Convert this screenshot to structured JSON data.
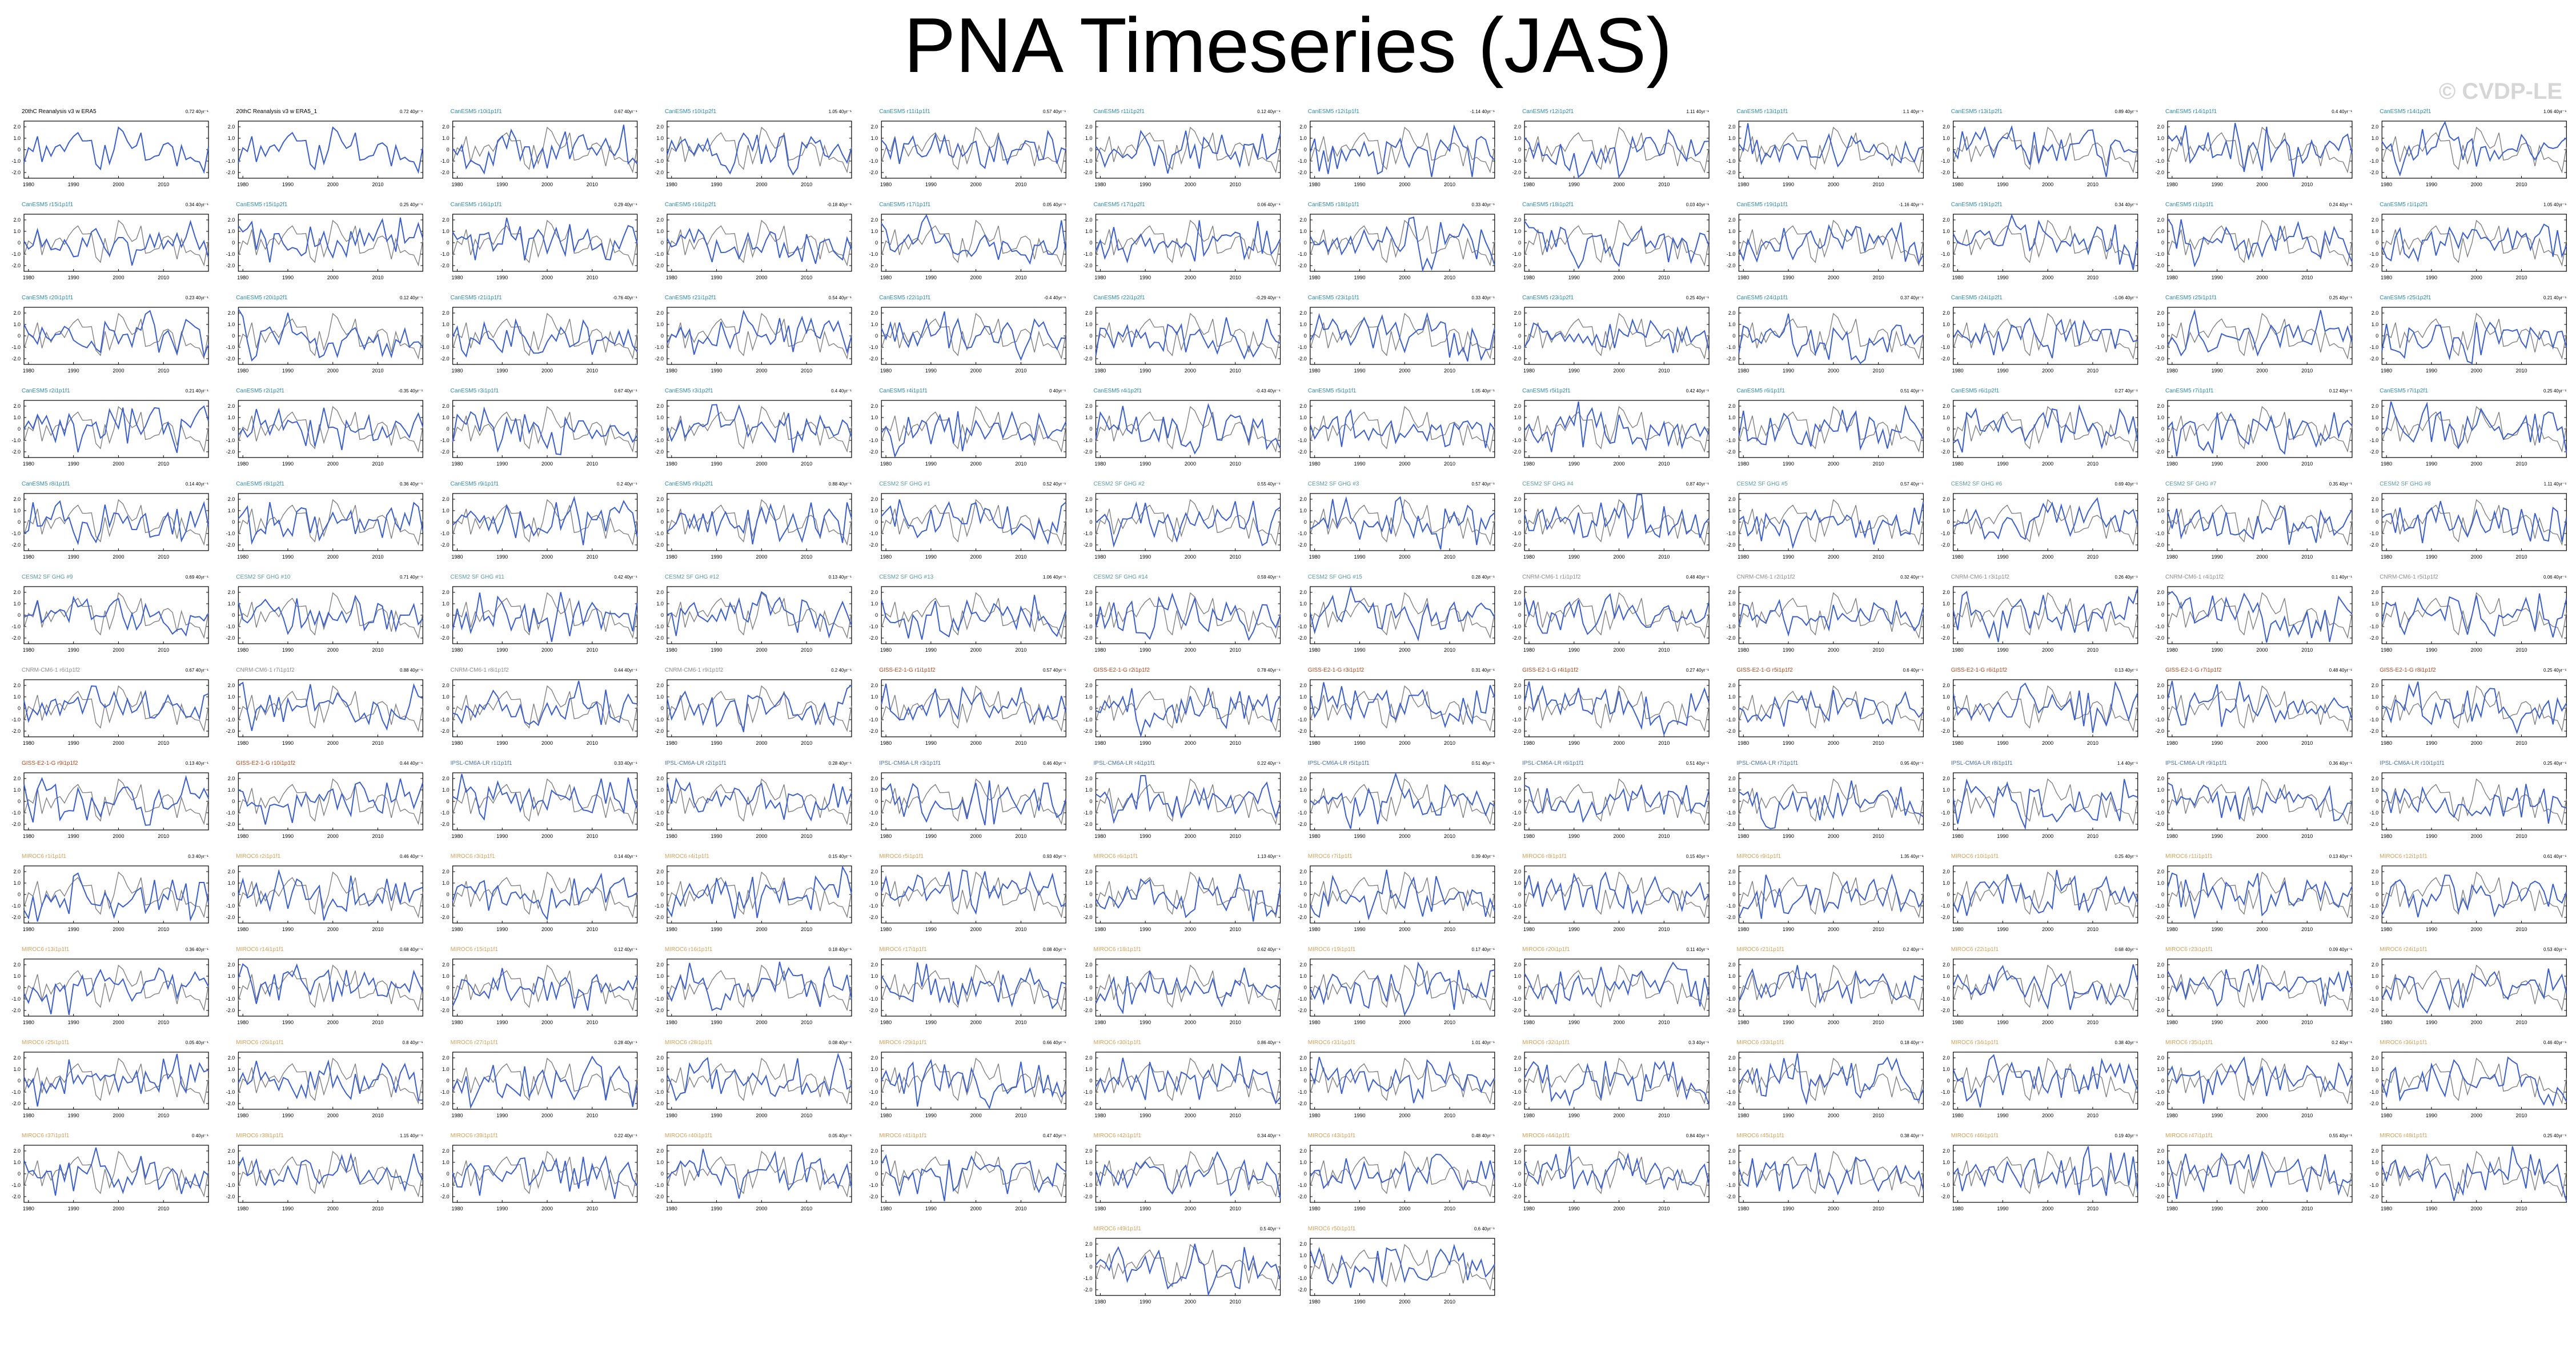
{
  "title": "PNA Timeseries (JAS)",
  "watermark": "© CVDP-LE",
  "colors": {
    "model_line": "#3a5fcd",
    "obs_line": "#808080",
    "axis": "#000000"
  },
  "chart_defaults": {
    "type": "line",
    "x_ticks": [
      "1980",
      "1990",
      "2000",
      "2010"
    ],
    "y_ticks": [
      "2.0",
      "1.0",
      "0",
      "-1.0",
      "-2.0"
    ],
    "xlim": [
      1979,
      2020
    ],
    "ylim": [
      -2.5,
      2.5
    ],
    "grid": false
  },
  "chart_data": [
    {
      "name": "20thC Reanalysis v3 w ERA5",
      "trend": "0.72 40yr⁻¹",
      "label_color": "#000000"
    },
    {
      "name": "20thC Reanalysis v3 w ERA5_1",
      "trend": "0.72 40yr⁻¹",
      "label_color": "#000000"
    },
    {
      "name": "CanESM5 r10i1p1f1",
      "trend": "0.67 40yr⁻¹",
      "label_color": "#2e8ba8"
    },
    {
      "name": "CanESM5 r10i1p2f1",
      "trend": "1.05 40yr⁻¹",
      "label_color": "#2e8ba8"
    },
    {
      "name": "CanESM5 r11i1p1f1",
      "trend": "0.57 40yr⁻¹",
      "label_color": "#2e8ba8"
    },
    {
      "name": "CanESM5 r11i1p2f1",
      "trend": "0.12 40yr⁻¹",
      "label_color": "#2e8ba8"
    },
    {
      "name": "CanESM5 r12i1p1f1",
      "trend": "-1.14 40yr⁻¹",
      "label_color": "#2e8ba8"
    },
    {
      "name": "CanESM5 r12i1p2f1",
      "trend": "1.11 40yr⁻¹",
      "label_color": "#2e8ba8"
    },
    {
      "name": "CanESM5 r13i1p1f1",
      "trend": "1.1 40yr⁻¹",
      "label_color": "#2e8ba8"
    },
    {
      "name": "CanESM5 r13i1p2f1",
      "trend": "0.89 40yr⁻¹",
      "label_color": "#2e8ba8"
    },
    {
      "name": "CanESM5 r14i1p1f1",
      "trend": "0.4 40yr⁻¹",
      "label_color": "#2e8ba8"
    },
    {
      "name": "CanESM5 r14i1p2f1",
      "trend": "1.06 40yr⁻¹",
      "label_color": "#2e8ba8"
    },
    {
      "name": "CanESM5 r15i1p1f1",
      "trend": "0.34 40yr⁻¹",
      "label_color": "#2e8ba8"
    },
    {
      "name": "CanESM5 r15i1p2f1",
      "trend": "0.25 40yr⁻¹",
      "label_color": "#2e8ba8"
    },
    {
      "name": "CanESM5 r16i1p1f1",
      "trend": "0.29 40yr⁻¹",
      "label_color": "#2e8ba8"
    },
    {
      "name": "CanESM5 r16i1p2f1",
      "trend": "-0.18 40yr⁻¹",
      "label_color": "#2e8ba8"
    },
    {
      "name": "CanESM5 r17i1p1f1",
      "trend": "0.05 40yr⁻¹",
      "label_color": "#2e8ba8"
    },
    {
      "name": "CanESM5 r17i1p2f1",
      "trend": "0.06 40yr⁻¹",
      "label_color": "#2e8ba8"
    },
    {
      "name": "CanESM5 r18i1p1f1",
      "trend": "0.33 40yr⁻¹",
      "label_color": "#2e8ba8"
    },
    {
      "name": "CanESM5 r18i1p2f1",
      "trend": "0.03 40yr⁻¹",
      "label_color": "#2e8ba8"
    },
    {
      "name": "CanESM5 r19i1p1f1",
      "trend": "-1.16 40yr⁻¹",
      "label_color": "#2e8ba8"
    },
    {
      "name": "CanESM5 r19i1p2f1",
      "trend": "0.34 40yr⁻¹",
      "label_color": "#2e8ba8"
    },
    {
      "name": "CanESM5 r1i1p1f1",
      "trend": "0.24 40yr⁻¹",
      "label_color": "#2e8ba8"
    },
    {
      "name": "CanESM5 r1i1p2f1",
      "trend": "1.05 40yr⁻¹",
      "label_color": "#2e8ba8"
    },
    {
      "name": "CanESM5 r20i1p1f1",
      "trend": "0.23 40yr⁻¹",
      "label_color": "#2e8ba8"
    },
    {
      "name": "CanESM5 r20i1p2f1",
      "trend": "0.12 40yr⁻¹",
      "label_color": "#2e8ba8"
    },
    {
      "name": "CanESM5 r21i1p1f1",
      "trend": "-0.76 40yr⁻¹",
      "label_color": "#2e8ba8"
    },
    {
      "name": "CanESM5 r21i1p2f1",
      "trend": "0.54 40yr⁻¹",
      "label_color": "#2e8ba8"
    },
    {
      "name": "CanESM5 r22i1p1f1",
      "trend": "-0.4 40yr⁻¹",
      "label_color": "#2e8ba8"
    },
    {
      "name": "CanESM5 r22i1p2f1",
      "trend": "-0.29 40yr⁻¹",
      "label_color": "#2e8ba8"
    },
    {
      "name": "CanESM5 r23i1p1f1",
      "trend": "0.33 40yr⁻¹",
      "label_color": "#2e8ba8"
    },
    {
      "name": "CanESM5 r23i1p2f1",
      "trend": "0.25 40yr⁻¹",
      "label_color": "#2e8ba8"
    },
    {
      "name": "CanESM5 r24i1p1f1",
      "trend": "0.37 40yr⁻¹",
      "label_color": "#2e8ba8"
    },
    {
      "name": "CanESM5 r24i1p2f1",
      "trend": "-1.06 40yr⁻¹",
      "label_color": "#2e8ba8"
    },
    {
      "name": "CanESM5 r25i1p1f1",
      "trend": "0.25 40yr⁻¹",
      "label_color": "#2e8ba8"
    },
    {
      "name": "CanESM5 r25i1p2f1",
      "trend": "0.21 40yr⁻¹",
      "label_color": "#2e8ba8"
    },
    {
      "name": "CanESM5 r2i1p1f1",
      "trend": "0.21 40yr⁻¹",
      "label_color": "#2e8ba8"
    },
    {
      "name": "CanESM5 r2i1p2f1",
      "trend": "-0.35 40yr⁻¹",
      "label_color": "#2e8ba8"
    },
    {
      "name": "CanESM5 r3i1p1f1",
      "trend": "0.67 40yr⁻¹",
      "label_color": "#2e8ba8"
    },
    {
      "name": "CanESM5 r3i1p2f1",
      "trend": "0.4 40yr⁻¹",
      "label_color": "#2e8ba8"
    },
    {
      "name": "CanESM5 r4i1p1f1",
      "trend": "0 40yr⁻¹",
      "label_color": "#2e8ba8"
    },
    {
      "name": "CanESM5 r4i1p2f1",
      "trend": "-0.43 40yr⁻¹",
      "label_color": "#2e8ba8"
    },
    {
      "name": "CanESM5 r5i1p1f1",
      "trend": "1.05 40yr⁻¹",
      "label_color": "#2e8ba8"
    },
    {
      "name": "CanESM5 r5i1p2f1",
      "trend": "0.42 40yr⁻¹",
      "label_color": "#2e8ba8"
    },
    {
      "name": "CanESM5 r6i1p1f1",
      "trend": "0.51 40yr⁻¹",
      "label_color": "#2e8ba8"
    },
    {
      "name": "CanESM5 r6i1p2f1",
      "trend": "0.27 40yr⁻¹",
      "label_color": "#2e8ba8"
    },
    {
      "name": "CanESM5 r7i1p1f1",
      "trend": "0.12 40yr⁻¹",
      "label_color": "#2e8ba8"
    },
    {
      "name": "CanESM5 r7i1p2f1",
      "trend": "0.25 40yr⁻¹",
      "label_color": "#2e8ba8"
    },
    {
      "name": "CanESM5 r8i1p1f1",
      "trend": "0.14 40yr⁻¹",
      "label_color": "#2e8ba8"
    },
    {
      "name": "CanESM5 r8i1p2f1",
      "trend": "0.36 40yr⁻¹",
      "label_color": "#2e8ba8"
    },
    {
      "name": "CanESM5 r9i1p1f1",
      "trend": "0.2 40yr⁻¹",
      "label_color": "#2e8ba8"
    },
    {
      "name": "CanESM5 r9i1p2f1",
      "trend": "0.88 40yr⁻¹",
      "label_color": "#2e8ba8"
    },
    {
      "name": "CESM2 SF GHG #1",
      "trend": "0.52 40yr⁻¹",
      "label_color": "#5a9aa0"
    },
    {
      "name": "CESM2 SF GHG #2",
      "trend": "0.55 40yr⁻¹",
      "label_color": "#5a9aa0"
    },
    {
      "name": "CESM2 SF GHG #3",
      "trend": "0.57 40yr⁻¹",
      "label_color": "#5a9aa0"
    },
    {
      "name": "CESM2 SF GHG #4",
      "trend": "0.87 40yr⁻¹",
      "label_color": "#5a9aa0"
    },
    {
      "name": "CESM2 SF GHG #5",
      "trend": "0.57 40yr⁻¹",
      "label_color": "#5a9aa0"
    },
    {
      "name": "CESM2 SF GHG #6",
      "trend": "0.69 40yr⁻¹",
      "label_color": "#5a9aa0"
    },
    {
      "name": "CESM2 SF GHG #7",
      "trend": "0.35 40yr⁻¹",
      "label_color": "#5a9aa0"
    },
    {
      "name": "CESM2 SF GHG #8",
      "trend": "1.11 40yr⁻¹",
      "label_color": "#5a9aa0"
    },
    {
      "name": "CESM2 SF GHG #9",
      "trend": "0.69 40yr⁻¹",
      "label_color": "#5a9aa0"
    },
    {
      "name": "CESM2 SF GHG #10",
      "trend": "0.71 40yr⁻¹",
      "label_color": "#5a9aa0"
    },
    {
      "name": "CESM2 SF GHG #11",
      "trend": "0.42 40yr⁻¹",
      "label_color": "#5a9aa0"
    },
    {
      "name": "CESM2 SF GHG #12",
      "trend": "0.13 40yr⁻¹",
      "label_color": "#5a9aa0"
    },
    {
      "name": "CESM2 SF GHG #13",
      "trend": "1.06 40yr⁻¹",
      "label_color": "#5a9aa0"
    },
    {
      "name": "CESM2 SF GHG #14",
      "trend": "0.59 40yr⁻¹",
      "label_color": "#5a9aa0"
    },
    {
      "name": "CESM2 SF GHG #15",
      "trend": "0.28 40yr⁻¹",
      "label_color": "#5a9aa0"
    },
    {
      "name": "CNRM-CM6-1 r1i1p1f2",
      "trend": "0.48 40yr⁻¹",
      "label_color": "#8c8c8c"
    },
    {
      "name": "CNRM-CM6-1 r2i1p1f2",
      "trend": "0.32 40yr⁻¹",
      "label_color": "#8c8c8c"
    },
    {
      "name": "CNRM-CM6-1 r3i1p1f2",
      "trend": "0.26 40yr⁻¹",
      "label_color": "#8c8c8c"
    },
    {
      "name": "CNRM-CM6-1 r4i1p1f2",
      "trend": "0.1 40yr⁻¹",
      "label_color": "#8c8c8c"
    },
    {
      "name": "CNRM-CM6-1 r5i1p1f2",
      "trend": "0.06 40yr⁻¹",
      "label_color": "#8c8c8c"
    },
    {
      "name": "CNRM-CM6-1 r6i1p1f2",
      "trend": "0.67 40yr⁻¹",
      "label_color": "#8c8c8c"
    },
    {
      "name": "CNRM-CM6-1 r7i1p1f2",
      "trend": "0.88 40yr⁻¹",
      "label_color": "#8c8c8c"
    },
    {
      "name": "CNRM-CM6-1 r8i1p1f2",
      "trend": "0.44 40yr⁻¹",
      "label_color": "#8c8c8c"
    },
    {
      "name": "CNRM-CM6-1 r9i1p1f2",
      "trend": "0.2 40yr⁻¹",
      "label_color": "#8c8c8c"
    },
    {
      "name": "GISS-E2-1-G r1i1p1f2",
      "trend": "0.57 40yr⁻¹",
      "label_color": "#b5451b"
    },
    {
      "name": "GISS-E2-1-G r2i1p1f2",
      "trend": "0.78 40yr⁻¹",
      "label_color": "#b5451b"
    },
    {
      "name": "GISS-E2-1-G r3i1p1f2",
      "trend": "0.31 40yr⁻¹",
      "label_color": "#b5451b"
    },
    {
      "name": "GISS-E2-1-G r4i1p1f2",
      "trend": "0.27 40yr⁻¹",
      "label_color": "#b5451b"
    },
    {
      "name": "GISS-E2-1-G r5i1p1f2",
      "trend": "0.6 40yr⁻¹",
      "label_color": "#b5451b"
    },
    {
      "name": "GISS-E2-1-G r6i1p1f2",
      "trend": "0.13 40yr⁻¹",
      "label_color": "#b5451b"
    },
    {
      "name": "GISS-E2-1-G r7i1p1f2",
      "trend": "0.48 40yr⁻¹",
      "label_color": "#b5451b"
    },
    {
      "name": "GISS-E2-1-G r8i1p1f2",
      "trend": "0.25 40yr⁻¹",
      "label_color": "#b5451b"
    },
    {
      "name": "GISS-E2-1-G r9i1p1f2",
      "trend": "0.13 40yr⁻¹",
      "label_color": "#b5451b"
    },
    {
      "name": "GISS-E2-1-G r10i1p1f2",
      "trend": "0.44 40yr⁻¹",
      "label_color": "#b5451b"
    },
    {
      "name": "IPSL-CM6A-LR r1i1p1f1",
      "trend": "0.33 40yr⁻¹",
      "label_color": "#4a6fa5"
    },
    {
      "name": "IPSL-CM6A-LR r2i1p1f1",
      "trend": "0.28 40yr⁻¹",
      "label_color": "#4a6fa5"
    },
    {
      "name": "IPSL-CM6A-LR r3i1p1f1",
      "trend": "0.46 40yr⁻¹",
      "label_color": "#4a6fa5"
    },
    {
      "name": "IPSL-CM6A-LR r4i1p1f1",
      "trend": "0.22 40yr⁻¹",
      "label_color": "#4a6fa5"
    },
    {
      "name": "IPSL-CM6A-LR r5i1p1f1",
      "trend": "0.51 40yr⁻¹",
      "label_color": "#4a6fa5"
    },
    {
      "name": "IPSL-CM6A-LR r6i1p1f1",
      "trend": "0.51 40yr⁻¹",
      "label_color": "#4a6fa5"
    },
    {
      "name": "IPSL-CM6A-LR r7i1p1f1",
      "trend": "0.95 40yr⁻¹",
      "label_color": "#4a6fa5"
    },
    {
      "name": "IPSL-CM6A-LR r8i1p1f1",
      "trend": "1.4 40yr⁻¹",
      "label_color": "#4a6fa5"
    },
    {
      "name": "IPSL-CM6A-LR r9i1p1f1",
      "trend": "0.36 40yr⁻¹",
      "label_color": "#4a6fa5"
    },
    {
      "name": "IPSL-CM6A-LR r10i1p1f1",
      "trend": "0.25 40yr⁻¹",
      "label_color": "#4a6fa5"
    },
    {
      "name": "MIROC6 r1i1p1f1",
      "trend": "0.3 40yr⁻¹",
      "label_color": "#d2a15a"
    },
    {
      "name": "MIROC6 r2i1p1f1",
      "trend": "0.46 40yr⁻¹",
      "label_color": "#d2a15a"
    },
    {
      "name": "MIROC6 r3i1p1f1",
      "trend": "0.14 40yr⁻¹",
      "label_color": "#d2a15a"
    },
    {
      "name": "MIROC6 r4i1p1f1",
      "trend": "0.15 40yr⁻¹",
      "label_color": "#d2a15a"
    },
    {
      "name": "MIROC6 r5i1p1f1",
      "trend": "0.93 40yr⁻¹",
      "label_color": "#d2a15a"
    },
    {
      "name": "MIROC6 r6i1p1f1",
      "trend": "1.13 40yr⁻¹",
      "label_color": "#d2a15a"
    },
    {
      "name": "MIROC6 r7i1p1f1",
      "trend": "0.39 40yr⁻¹",
      "label_color": "#d2a15a"
    },
    {
      "name": "MIROC6 r8i1p1f1",
      "trend": "0.15 40yr⁻¹",
      "label_color": "#d2a15a"
    },
    {
      "name": "MIROC6 r9i1p1f1",
      "trend": "1.35 40yr⁻¹",
      "label_color": "#d2a15a"
    },
    {
      "name": "MIROC6 r10i1p1f1",
      "trend": "0.25 40yr⁻¹",
      "label_color": "#d2a15a"
    },
    {
      "name": "MIROC6 r11i1p1f1",
      "trend": "0.13 40yr⁻¹",
      "label_color": "#d2a15a"
    },
    {
      "name": "MIROC6 r12i1p1f1",
      "trend": "0.61 40yr⁻¹",
      "label_color": "#d2a15a"
    },
    {
      "name": "MIROC6 r13i1p1f1",
      "trend": "0.36 40yr⁻¹",
      "label_color": "#d2a15a"
    },
    {
      "name": "MIROC6 r14i1p1f1",
      "trend": "0.68 40yr⁻¹",
      "label_color": "#d2a15a"
    },
    {
      "name": "MIROC6 r15i1p1f1",
      "trend": "0.12 40yr⁻¹",
      "label_color": "#d2a15a"
    },
    {
      "name": "MIROC6 r16i1p1f1",
      "trend": "0.18 40yr⁻¹",
      "label_color": "#d2a15a"
    },
    {
      "name": "MIROC6 r17i1p1f1",
      "trend": "0.08 40yr⁻¹",
      "label_color": "#d2a15a"
    },
    {
      "name": "MIROC6 r18i1p1f1",
      "trend": "0.62 40yr⁻¹",
      "label_color": "#d2a15a"
    },
    {
      "name": "MIROC6 r19i1p1f1",
      "trend": "0.17 40yr⁻¹",
      "label_color": "#d2a15a"
    },
    {
      "name": "MIROC6 r20i1p1f1",
      "trend": "0.11 40yr⁻¹",
      "label_color": "#d2a15a"
    },
    {
      "name": "MIROC6 r21i1p1f1",
      "trend": "0.2 40yr⁻¹",
      "label_color": "#d2a15a"
    },
    {
      "name": "MIROC6 r22i1p1f1",
      "trend": "0.68 40yr⁻¹",
      "label_color": "#d2a15a"
    },
    {
      "name": "MIROC6 r23i1p1f1",
      "trend": "0.09 40yr⁻¹",
      "label_color": "#d2a15a"
    },
    {
      "name": "MIROC6 r24i1p1f1",
      "trend": "0.53 40yr⁻¹",
      "label_color": "#d2a15a"
    },
    {
      "name": "MIROC6 r25i1p1f1",
      "trend": "0.05 40yr⁻¹",
      "label_color": "#d2a15a"
    },
    {
      "name": "MIROC6 r26i1p1f1",
      "trend": "0.8 40yr⁻¹",
      "label_color": "#d2a15a"
    },
    {
      "name": "MIROC6 r27i1p1f1",
      "trend": "0.28 40yr⁻¹",
      "label_color": "#d2a15a"
    },
    {
      "name": "MIROC6 r28i1p1f1",
      "trend": "0.08 40yr⁻¹",
      "label_color": "#d2a15a"
    },
    {
      "name": "MIROC6 r29i1p1f1",
      "trend": "0.66 40yr⁻¹",
      "label_color": "#d2a15a"
    },
    {
      "name": "MIROC6 r30i1p1f1",
      "trend": "0.86 40yr⁻¹",
      "label_color": "#d2a15a"
    },
    {
      "name": "MIROC6 r31i1p1f1",
      "trend": "1.01 40yr⁻¹",
      "label_color": "#d2a15a"
    },
    {
      "name": "MIROC6 r32i1p1f1",
      "trend": "0.3 40yr⁻¹",
      "label_color": "#d2a15a"
    },
    {
      "name": "MIROC6 r33i1p1f1",
      "trend": "0.18 40yr⁻¹",
      "label_color": "#d2a15a"
    },
    {
      "name": "MIROC6 r34i1p1f1",
      "trend": "0.38 40yr⁻¹",
      "label_color": "#d2a15a"
    },
    {
      "name": "MIROC6 r35i1p1f1",
      "trend": "0.2 40yr⁻¹",
      "label_color": "#d2a15a"
    },
    {
      "name": "MIROC6 r36i1p1f1",
      "trend": "0.46 40yr⁻¹",
      "label_color": "#d2a15a"
    },
    {
      "name": "MIROC6 r37i1p1f1",
      "trend": "0 40yr⁻¹",
      "label_color": "#d2a15a"
    },
    {
      "name": "MIROC6 r38i1p1f1",
      "trend": "1.15 40yr⁻¹",
      "label_color": "#d2a15a"
    },
    {
      "name": "MIROC6 r39i1p1f1",
      "trend": "0.22 40yr⁻¹",
      "label_color": "#d2a15a"
    },
    {
      "name": "MIROC6 r40i1p1f1",
      "trend": "0.05 40yr⁻¹",
      "label_color": "#d2a15a"
    },
    {
      "name": "MIROC6 r41i1p1f1",
      "trend": "0.47 40yr⁻¹",
      "label_color": "#d2a15a"
    },
    {
      "name": "MIROC6 r42i1p1f1",
      "trend": "0.34 40yr⁻¹",
      "label_color": "#d2a15a"
    },
    {
      "name": "MIROC6 r43i1p1f1",
      "trend": "0.48 40yr⁻¹",
      "label_color": "#d2a15a"
    },
    {
      "name": "MIROC6 r44i1p1f1",
      "trend": "0.84 40yr⁻¹",
      "label_color": "#d2a15a"
    },
    {
      "name": "MIROC6 r45i1p1f1",
      "trend": "0.38 40yr⁻¹",
      "label_color": "#d2a15a"
    },
    {
      "name": "MIROC6 r46i1p1f1",
      "trend": "0.19 40yr⁻¹",
      "label_color": "#d2a15a"
    },
    {
      "name": "MIROC6 r47i1p1f1",
      "trend": "0.55 40yr⁻¹",
      "label_color": "#d2a15a"
    },
    {
      "name": "MIROC6 r48i1p1f1",
      "trend": "0.25 40yr⁻¹",
      "label_color": "#d2a15a"
    },
    {
      "name": "MIROC6 r49i1p1f1",
      "trend": "0.5 40yr⁻¹",
      "label_color": "#d2a15a"
    },
    {
      "name": "MIROC6 r50i1p1f1",
      "trend": "0.6 40yr⁻¹",
      "label_color": "#d2a15a"
    }
  ]
}
